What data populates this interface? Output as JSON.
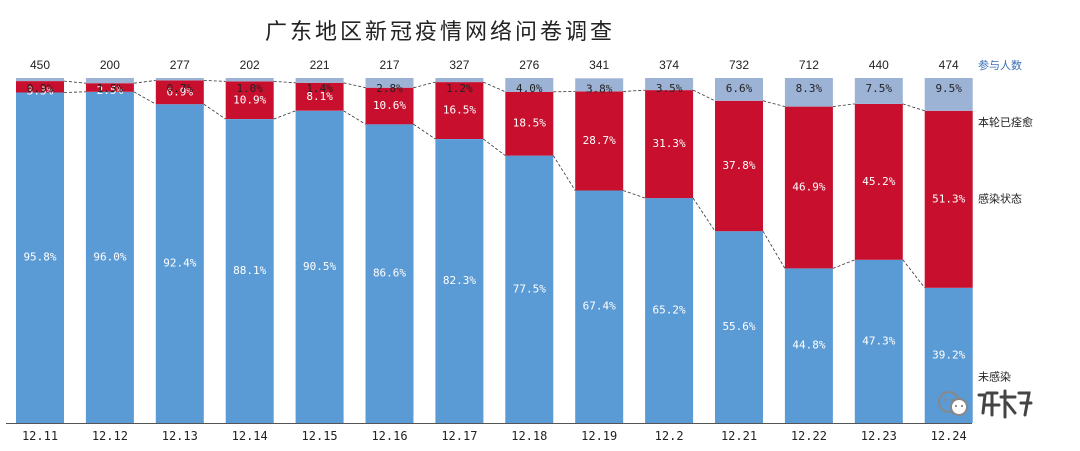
{
  "title": "广东地区新冠疫情网络问卷调查",
  "colors": {
    "recovered": "#9db3d6",
    "infected": "#c8102e",
    "uninfected": "#5b9bd5",
    "connector": "#333333"
  },
  "chart_data": {
    "type": "bar",
    "stacked": true,
    "percent_stacked": true,
    "categories": [
      "12.11",
      "12.12",
      "12.13",
      "12.14",
      "12.15",
      "12.16",
      "12.17",
      "12.18",
      "12.19",
      "12.2",
      "12.21",
      "12.22",
      "12.23",
      "12.24"
    ],
    "participants_label": "参与人数",
    "participants": [
      "450",
      "200",
      "277",
      "202",
      "221",
      "217",
      "327",
      "276",
      "341",
      "374",
      "732",
      "712",
      "440",
      "474"
    ],
    "series": [
      {
        "name": "未感染",
        "color": "#5b9bd5",
        "values": [
          95.8,
          96.0,
          92.4,
          88.1,
          90.5,
          86.6,
          82.3,
          77.5,
          67.4,
          65.2,
          55.6,
          44.8,
          47.3,
          39.2
        ],
        "labels": [
          "95.8%",
          "96.0%",
          "92.4%",
          "88.1%",
          "90.5%",
          "86.6%",
          "82.3%",
          "77.5%",
          "67.4%",
          "65.2%",
          "55.6%",
          "44.8%",
          "47.3%",
          "39.2%"
        ]
      },
      {
        "name": "感染状态",
        "color": "#c8102e",
        "values": [
          3.3,
          2.5,
          6.9,
          10.9,
          8.1,
          10.6,
          16.5,
          18.5,
          28.7,
          31.3,
          37.8,
          46.9,
          45.2,
          51.3
        ],
        "labels": [
          "3.3%",
          "2.5%",
          "6.9%",
          "10.9%",
          "8.1%",
          "10.6%",
          "16.5%",
          "18.5%",
          "28.7%",
          "31.3%",
          "37.8%",
          "46.9%",
          "45.2%",
          "51.3%"
        ]
      },
      {
        "name": "本轮已痊愈",
        "color": "#9db3d6",
        "values": [
          0.9,
          1.5,
          0.7,
          1.0,
          1.4,
          2.8,
          1.2,
          4.0,
          3.8,
          3.5,
          6.6,
          8.3,
          7.5,
          9.5
        ],
        "labels": [
          "0.9%",
          "1.5%",
          "0.7%",
          "1.0%",
          "1.4%",
          "2.8%",
          "1.2%",
          "4.0%",
          "3.8%",
          "3.5%",
          "6.6%",
          "8.3%",
          "7.5%",
          "9.5%"
        ]
      }
    ],
    "ylim": [
      0,
      100
    ],
    "grid": false,
    "legend_position": "right"
  }
}
